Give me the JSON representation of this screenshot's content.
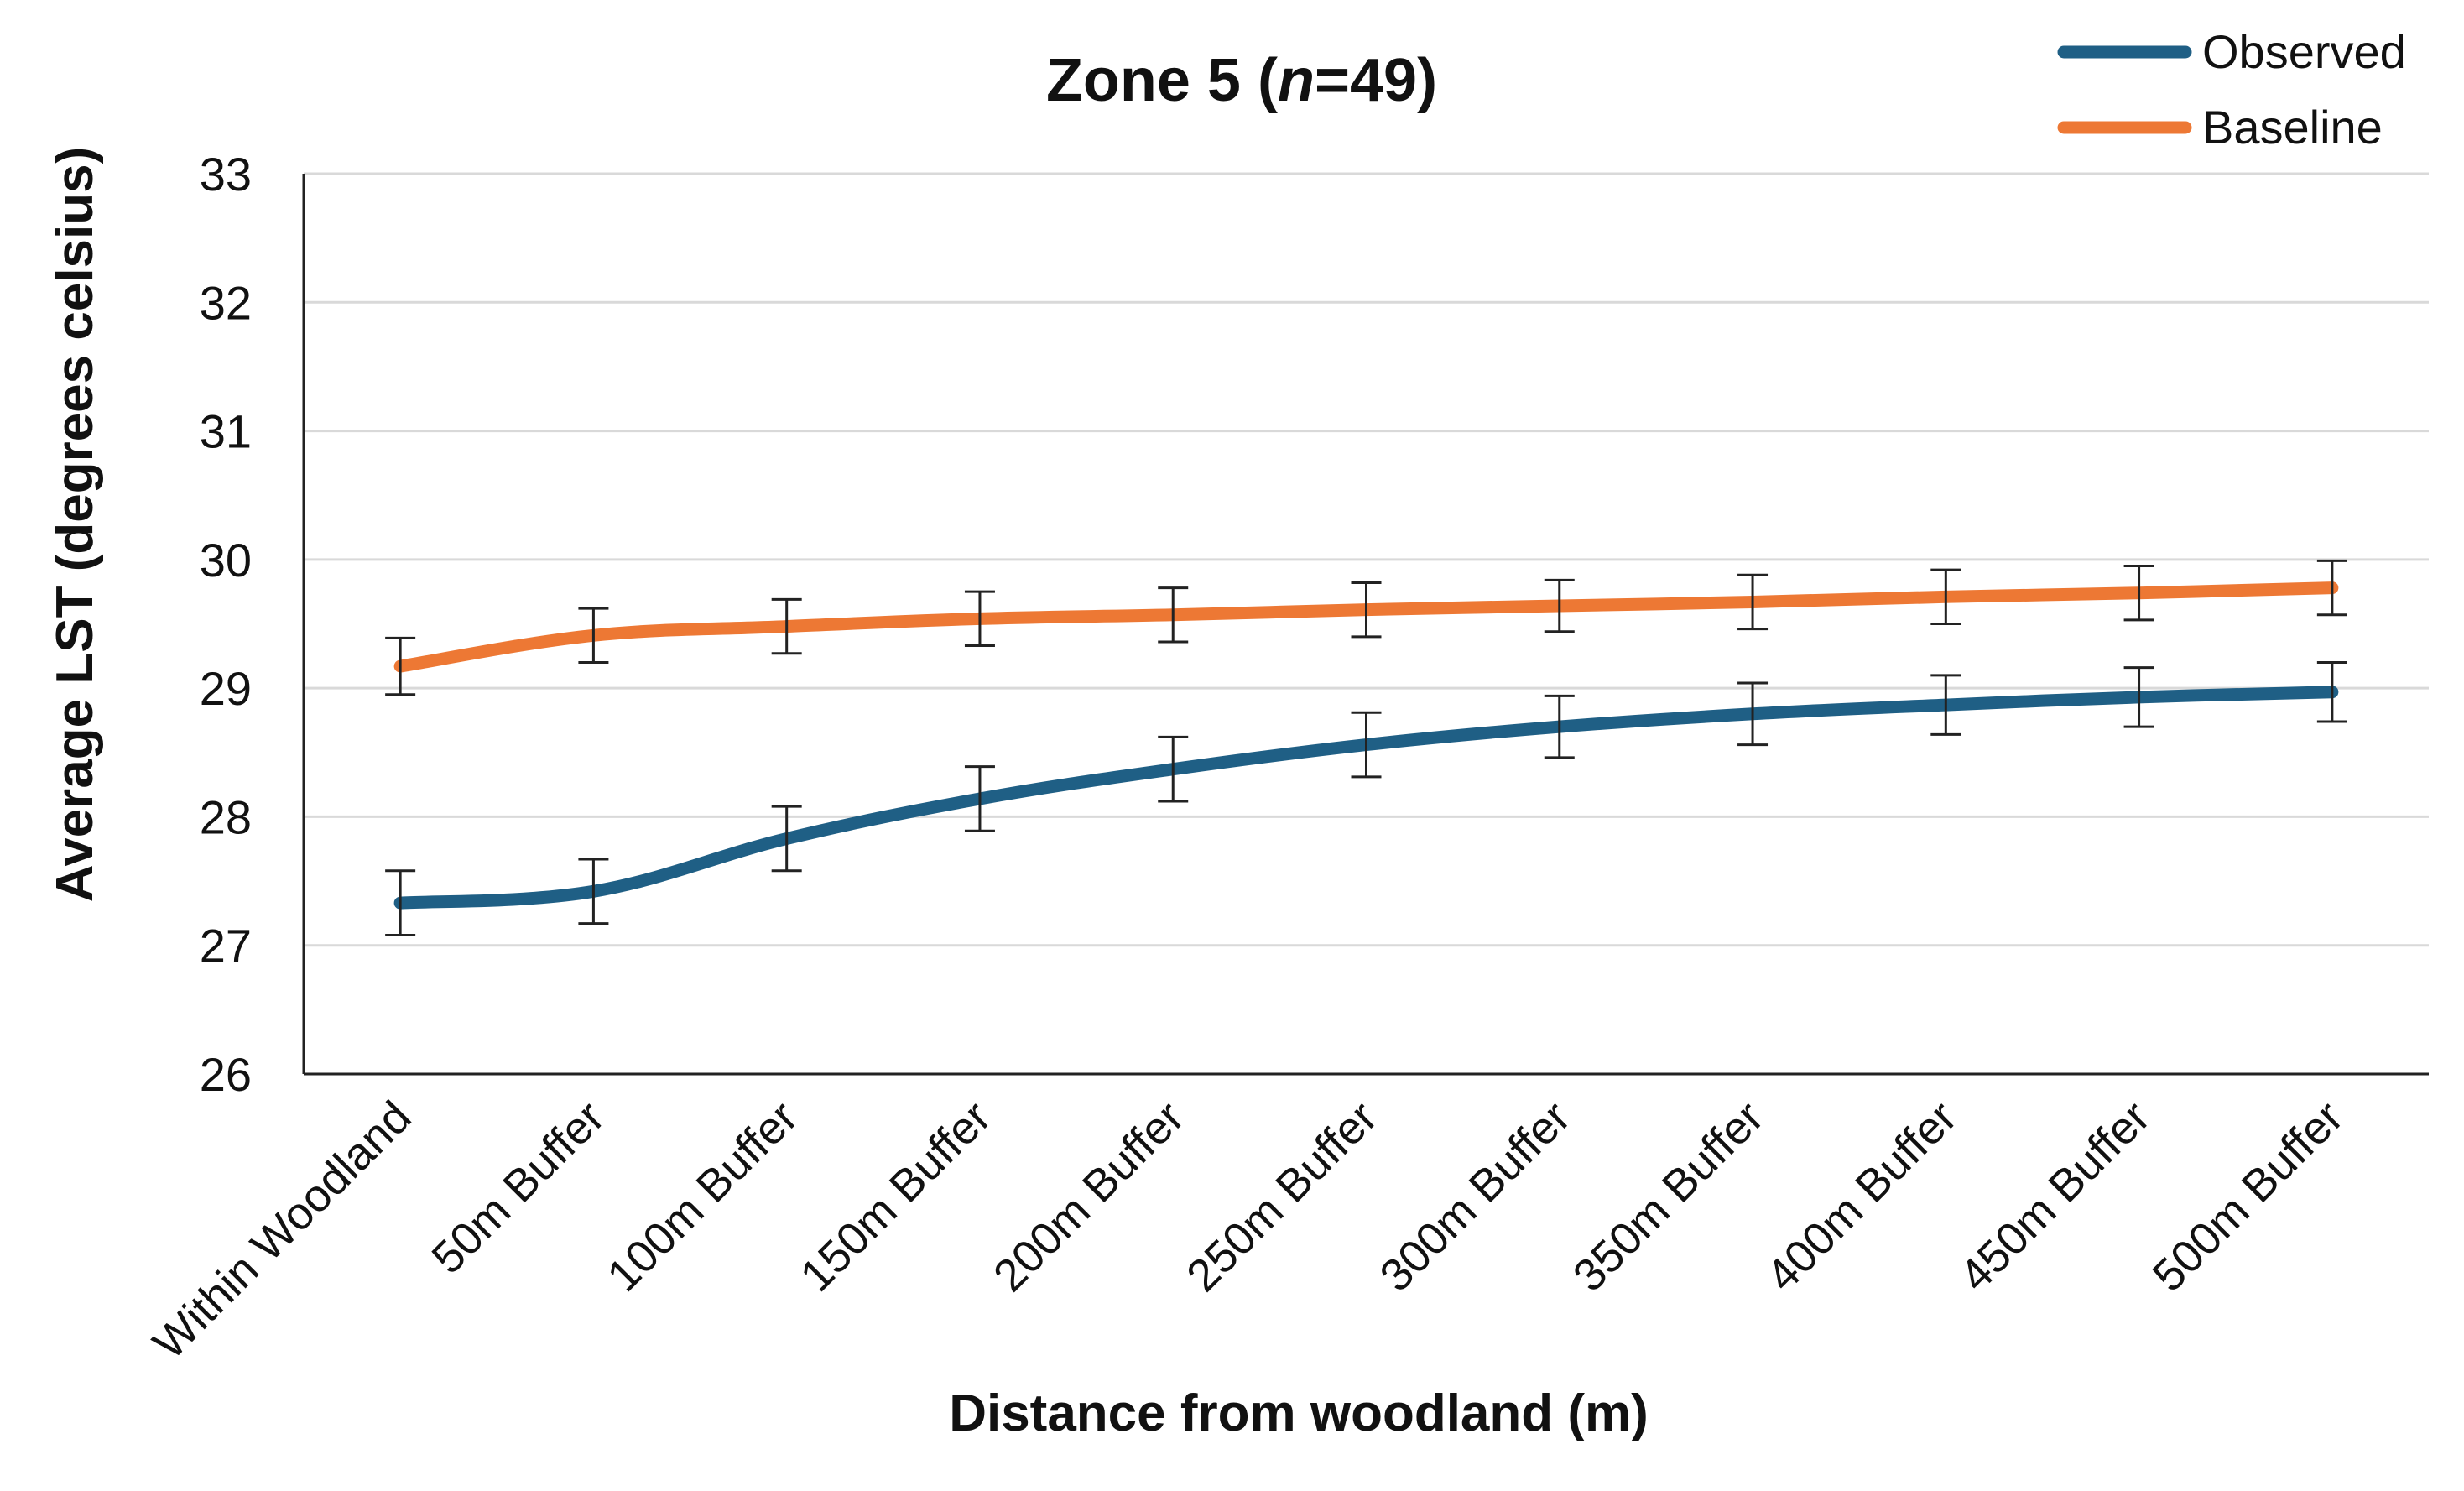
{
  "chart_data": {
    "type": "line",
    "title": "Zone 5 (n=49)",
    "title_parts": [
      {
        "text": "Zone 5 (",
        "italic": false
      },
      {
        "text": "n",
        "italic": true
      },
      {
        "text": "=49)",
        "italic": false
      }
    ],
    "xlabel": "Distance from woodland (m)",
    "ylabel": "Average LST (degrees celsius)",
    "ylim": [
      26,
      33
    ],
    "yticks": [
      26,
      27,
      28,
      29,
      30,
      31,
      32,
      33
    ],
    "grid": true,
    "legend_position": "top-right",
    "error_bars": true,
    "categories": [
      "Within Woodland",
      "50m Buffer",
      "100m Buffer",
      "150m Buffer",
      "200m Buffer",
      "250m Buffer",
      "300m Buffer",
      "350m Buffer",
      "400m Buffer",
      "450m Buffer",
      "500m Buffer"
    ],
    "series": [
      {
        "name": "Observed",
        "color": "#1f5f85",
        "values": [
          27.33,
          27.42,
          27.83,
          28.14,
          28.37,
          28.56,
          28.7,
          28.8,
          28.87,
          28.93,
          28.97
        ],
        "error": [
          0.25,
          0.25,
          0.25,
          0.25,
          0.25,
          0.25,
          0.24,
          0.24,
          0.23,
          0.23,
          0.23
        ]
      },
      {
        "name": "Baseline",
        "color": "#ed7834",
        "values": [
          29.17,
          29.41,
          29.48,
          29.54,
          29.57,
          29.61,
          29.64,
          29.67,
          29.71,
          29.74,
          29.78
        ],
        "error": [
          0.22,
          0.21,
          0.21,
          0.21,
          0.21,
          0.21,
          0.2,
          0.21,
          0.21,
          0.21,
          0.21
        ]
      }
    ],
    "colors": {
      "grid": "#d9d9d9",
      "axis": "#222222",
      "text": "#111111",
      "error_bar": "#222222"
    }
  }
}
